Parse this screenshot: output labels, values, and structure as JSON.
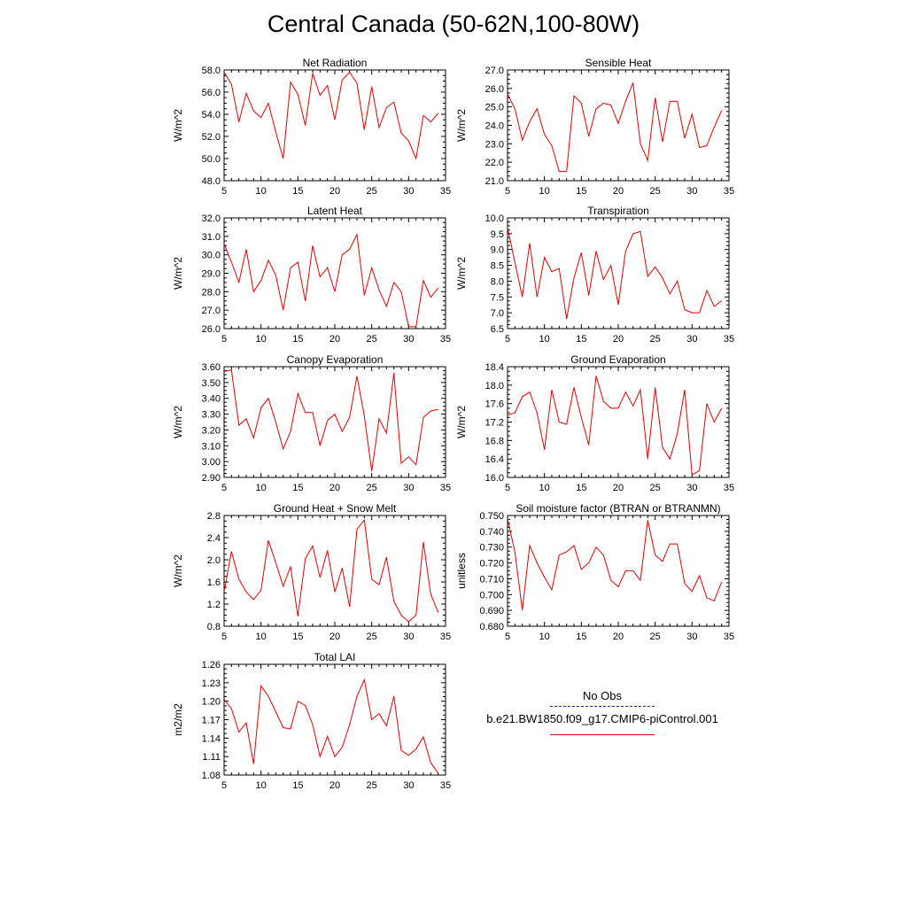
{
  "title": "Central Canada (50-62N,100-80W)",
  "legend": {
    "obs_label": "No Obs",
    "model_label": "b.e21.BW1850.f09_g17.CMIP6-piControl.001",
    "obs_color": "#2b2b8f",
    "model_color": "#e00000"
  },
  "chart_data": [
    {
      "type": "line",
      "title": "Net Radiation",
      "ylabel": "W/m^2",
      "xlim": [
        5,
        35
      ],
      "ylim": [
        48,
        58
      ],
      "xticks": [
        5,
        10,
        15,
        20,
        25,
        30,
        35
      ],
      "yticks": [
        48.0,
        50.0,
        52.0,
        54.0,
        56.0,
        58.0
      ],
      "ydecimals": 1,
      "x": [
        5,
        6,
        7,
        8,
        9,
        10,
        11,
        12,
        13,
        14,
        15,
        16,
        17,
        18,
        19,
        20,
        21,
        22,
        23,
        24,
        25,
        26,
        27,
        28,
        29,
        30,
        31,
        32,
        33,
        34
      ],
      "series": [
        {
          "color": "#e00000",
          "values": [
            57.8,
            56.7,
            53.3,
            55.9,
            54.3,
            53.7,
            55.0,
            52.4,
            50.0,
            56.9,
            55.8,
            53.0,
            57.7,
            55.7,
            56.6,
            53.5,
            57.1,
            57.8,
            56.8,
            52.6,
            56.5,
            52.8,
            54.6,
            55.1,
            52.3,
            51.6,
            50.0,
            53.9,
            53.3,
            54.1
          ]
        }
      ]
    },
    {
      "type": "line",
      "title": "Sensible Heat",
      "ylabel": "W/m^2",
      "xlim": [
        5,
        35
      ],
      "ylim": [
        21,
        27
      ],
      "xticks": [
        5,
        10,
        15,
        20,
        25,
        30,
        35
      ],
      "yticks": [
        21.0,
        22.0,
        23.0,
        24.0,
        25.0,
        26.0,
        27.0
      ],
      "ydecimals": 1,
      "x": [
        5,
        6,
        7,
        8,
        9,
        10,
        11,
        12,
        13,
        14,
        15,
        16,
        17,
        18,
        19,
        20,
        21,
        22,
        23,
        24,
        25,
        26,
        27,
        28,
        29,
        30,
        31,
        32,
        33,
        34
      ],
      "series": [
        {
          "color": "#e00000",
          "values": [
            25.7,
            24.9,
            23.2,
            24.2,
            24.9,
            23.5,
            22.9,
            21.5,
            21.5,
            25.6,
            25.2,
            23.4,
            24.9,
            25.2,
            25.1,
            24.1,
            25.3,
            26.3,
            23.0,
            22.1,
            25.5,
            23.1,
            25.3,
            25.3,
            23.3,
            24.6,
            22.8,
            22.9,
            23.9,
            24.8
          ]
        }
      ]
    },
    {
      "type": "line",
      "title": "Latent Heat",
      "ylabel": "W/m^2",
      "xlim": [
        5,
        35
      ],
      "ylim": [
        26,
        32
      ],
      "xticks": [
        5,
        10,
        15,
        20,
        25,
        30,
        35
      ],
      "yticks": [
        26.0,
        27.0,
        28.0,
        29.0,
        30.0,
        31.0,
        32.0
      ],
      "ydecimals": 1,
      "x": [
        5,
        6,
        7,
        8,
        9,
        10,
        11,
        12,
        13,
        14,
        15,
        16,
        17,
        18,
        19,
        20,
        21,
        22,
        23,
        24,
        25,
        26,
        27,
        28,
        29,
        30,
        31,
        32,
        33,
        34
      ],
      "series": [
        {
          "color": "#e00000",
          "values": [
            30.6,
            29.6,
            28.5,
            30.3,
            28.0,
            28.6,
            29.7,
            28.9,
            27.0,
            29.3,
            29.6,
            27.5,
            30.5,
            28.8,
            29.3,
            28.0,
            30.0,
            30.3,
            31.1,
            27.8,
            29.3,
            28.1,
            27.2,
            28.5,
            28.0,
            26.1,
            26.1,
            28.6,
            27.7,
            28.2
          ]
        }
      ]
    },
    {
      "type": "line",
      "title": "Transpiration",
      "ylabel": "W/m^2",
      "xlim": [
        5,
        35
      ],
      "ylim": [
        6.5,
        10.0
      ],
      "xticks": [
        5,
        10,
        15,
        20,
        25,
        30,
        35
      ],
      "yticks": [
        6.5,
        7.0,
        7.5,
        8.0,
        8.5,
        9.0,
        9.5,
        10.0
      ],
      "ydecimals": 1,
      "x": [
        5,
        6,
        7,
        8,
        9,
        10,
        11,
        12,
        13,
        14,
        15,
        16,
        17,
        18,
        19,
        20,
        21,
        22,
        23,
        24,
        25,
        26,
        27,
        28,
        29,
        30,
        31,
        32,
        33,
        34
      ],
      "series": [
        {
          "color": "#e00000",
          "values": [
            9.7,
            8.6,
            7.5,
            9.2,
            7.5,
            8.75,
            8.3,
            8.4,
            6.8,
            8.1,
            8.9,
            7.55,
            8.95,
            8.05,
            8.5,
            7.25,
            8.95,
            9.5,
            9.57,
            8.15,
            8.45,
            8.1,
            7.6,
            8.0,
            7.1,
            7.0,
            7.0,
            7.7,
            7.2,
            7.38
          ]
        }
      ]
    },
    {
      "type": "line",
      "title": "Canopy Evaporation",
      "ylabel": "W/m^2",
      "xlim": [
        5,
        35
      ],
      "ylim": [
        2.9,
        3.6
      ],
      "xticks": [
        5,
        10,
        15,
        20,
        25,
        30,
        35
      ],
      "yticks": [
        2.9,
        3.0,
        3.1,
        3.2,
        3.3,
        3.4,
        3.5,
        3.6
      ],
      "ydecimals": 2,
      "x": [
        5,
        6,
        7,
        8,
        9,
        10,
        11,
        12,
        13,
        14,
        15,
        16,
        17,
        18,
        19,
        20,
        21,
        22,
        23,
        24,
        25,
        26,
        27,
        28,
        29,
        30,
        31,
        32,
        33,
        34
      ],
      "series": [
        {
          "color": "#e00000",
          "values": [
            3.57,
            3.58,
            3.23,
            3.27,
            3.15,
            3.34,
            3.4,
            3.25,
            3.08,
            3.19,
            3.43,
            3.31,
            3.31,
            3.1,
            3.26,
            3.3,
            3.19,
            3.28,
            3.54,
            3.29,
            2.94,
            3.27,
            3.18,
            3.56,
            2.99,
            3.03,
            2.98,
            3.28,
            3.32,
            3.33
          ]
        }
      ]
    },
    {
      "type": "line",
      "title": "Ground Evaporation",
      "ylabel": "W/m^2",
      "xlim": [
        5,
        35
      ],
      "ylim": [
        16.0,
        18.4
      ],
      "xticks": [
        5,
        10,
        15,
        20,
        25,
        30,
        35
      ],
      "yticks": [
        16.0,
        16.4,
        16.8,
        17.2,
        17.6,
        18.0,
        18.4
      ],
      "ydecimals": 1,
      "x": [
        5,
        6,
        7,
        8,
        9,
        10,
        11,
        12,
        13,
        14,
        15,
        16,
        17,
        18,
        19,
        20,
        21,
        22,
        23,
        24,
        25,
        26,
        27,
        28,
        29,
        30,
        31,
        32,
        33,
        34
      ],
      "series": [
        {
          "color": "#e00000",
          "values": [
            17.35,
            17.4,
            17.75,
            17.85,
            17.4,
            16.6,
            17.9,
            17.2,
            17.15,
            17.95,
            17.3,
            16.7,
            18.2,
            17.65,
            17.5,
            17.5,
            17.85,
            17.55,
            17.9,
            16.4,
            17.95,
            16.65,
            16.4,
            16.95,
            17.9,
            16.05,
            16.15,
            17.6,
            17.2,
            17.5
          ]
        }
      ]
    },
    {
      "type": "line",
      "title": "Ground Heat + Snow Melt",
      "ylabel": "W/m^2",
      "xlim": [
        5,
        35
      ],
      "ylim": [
        0.8,
        2.8
      ],
      "xticks": [
        5,
        10,
        15,
        20,
        25,
        30,
        35
      ],
      "yticks": [
        0.8,
        1.2,
        1.6,
        2.0,
        2.4,
        2.8
      ],
      "ydecimals": 1,
      "x": [
        5,
        6,
        7,
        8,
        9,
        10,
        11,
        12,
        13,
        14,
        15,
        16,
        17,
        18,
        19,
        20,
        21,
        22,
        23,
        24,
        25,
        26,
        27,
        28,
        29,
        30,
        31,
        32,
        33,
        34
      ],
      "series": [
        {
          "color": "#e00000",
          "values": [
            1.42,
            2.15,
            1.65,
            1.42,
            1.28,
            1.45,
            2.35,
            1.95,
            1.52,
            1.88,
            0.98,
            2.02,
            2.25,
            1.68,
            2.17,
            1.42,
            1.85,
            1.15,
            2.55,
            2.72,
            1.65,
            1.55,
            2.05,
            1.25,
            1.0,
            0.88,
            1.0,
            2.32,
            1.38,
            1.05
          ]
        }
      ]
    },
    {
      "type": "line",
      "title": "Soil moisture factor (BTRAN or BTRANMN)",
      "ylabel": "unitless",
      "xlim": [
        5,
        35
      ],
      "ylim": [
        0.68,
        0.75
      ],
      "xticks": [
        5,
        10,
        15,
        20,
        25,
        30,
        35
      ],
      "yticks": [
        0.68,
        0.69,
        0.7,
        0.71,
        0.72,
        0.73,
        0.74,
        0.75
      ],
      "ydecimals": 3,
      "x": [
        5,
        6,
        7,
        8,
        9,
        10,
        11,
        12,
        13,
        14,
        15,
        16,
        17,
        18,
        19,
        20,
        21,
        22,
        23,
        24,
        25,
        26,
        27,
        28,
        29,
        30,
        31,
        32,
        33,
        34
      ],
      "series": [
        {
          "color": "#e00000",
          "values": [
            0.748,
            0.727,
            0.69,
            0.731,
            0.72,
            0.711,
            0.703,
            0.725,
            0.727,
            0.731,
            0.716,
            0.72,
            0.73,
            0.725,
            0.709,
            0.705,
            0.715,
            0.715,
            0.709,
            0.747,
            0.725,
            0.721,
            0.732,
            0.732,
            0.707,
            0.702,
            0.712,
            0.698,
            0.696,
            0.708
          ]
        }
      ]
    },
    {
      "type": "line",
      "title": "Total LAI",
      "ylabel": "m2/m2",
      "xlim": [
        5,
        35
      ],
      "ylim": [
        1.08,
        1.26
      ],
      "xticks": [
        5,
        10,
        15,
        20,
        25,
        30,
        35
      ],
      "yticks": [
        1.08,
        1.11,
        1.14,
        1.17,
        1.2,
        1.23,
        1.26
      ],
      "ydecimals": 2,
      "x": [
        5,
        6,
        7,
        8,
        9,
        10,
        11,
        12,
        13,
        14,
        15,
        16,
        17,
        18,
        19,
        20,
        21,
        22,
        23,
        24,
        25,
        26,
        27,
        28,
        29,
        30,
        31,
        32,
        33,
        34
      ],
      "series": [
        {
          "color": "#e00000",
          "values": [
            1.203,
            1.188,
            1.15,
            1.165,
            1.098,
            1.225,
            1.208,
            1.183,
            1.157,
            1.155,
            1.2,
            1.193,
            1.162,
            1.11,
            1.143,
            1.11,
            1.125,
            1.162,
            1.208,
            1.235,
            1.17,
            1.18,
            1.16,
            1.208,
            1.12,
            1.112,
            1.122,
            1.142,
            1.1,
            1.083
          ]
        }
      ]
    }
  ]
}
